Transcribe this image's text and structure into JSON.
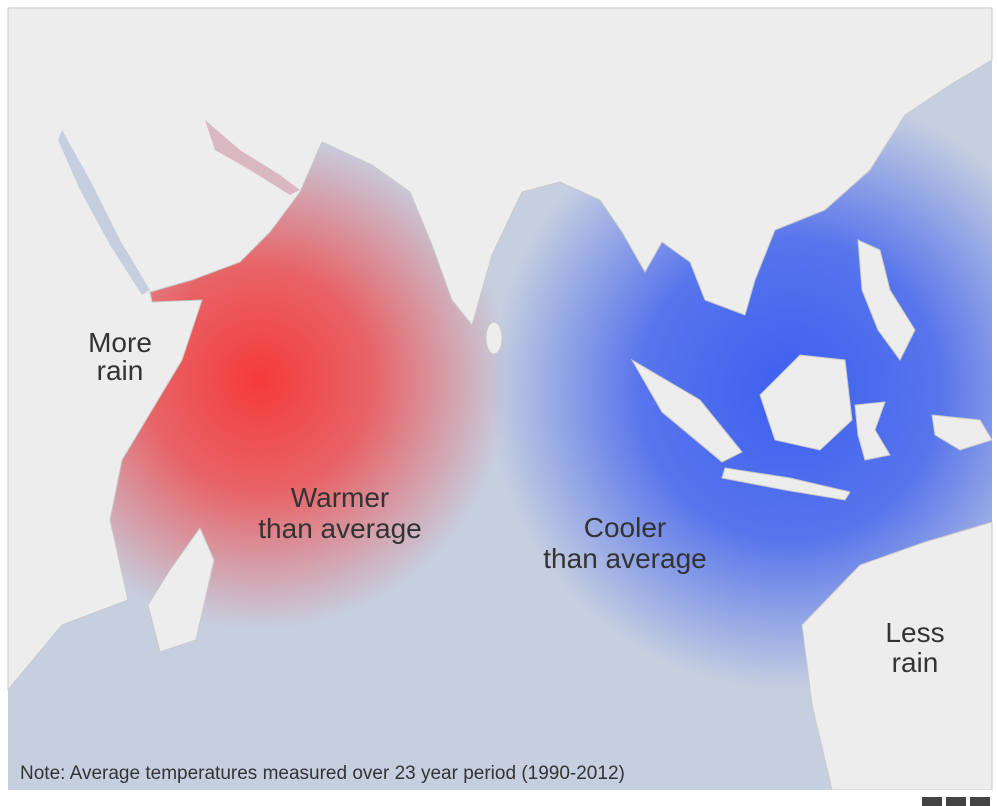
{
  "labels": {
    "more_rain": [
      "More",
      "rain"
    ],
    "warmer": [
      "Warmer",
      "than average"
    ],
    "cooler": [
      "Cooler",
      "than average"
    ],
    "less_rain": [
      "Less",
      "rain"
    ]
  },
  "note": "Note: Average temperatures measured over 23 year period (1990-2012)"
}
